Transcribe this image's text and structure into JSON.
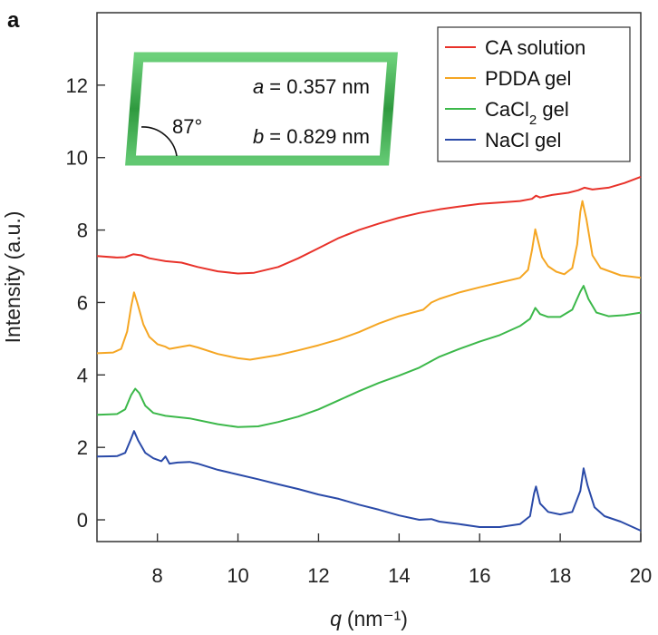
{
  "panel_label": "a",
  "chart_data": {
    "type": "line",
    "title": "",
    "xlabel_var": "q",
    "xlabel_unit": "(nm⁻¹)",
    "ylabel": "Intensity (a.u.)",
    "xlim": [
      6.5,
      20
    ],
    "ylim": [
      -0.6,
      14
    ],
    "x_ticks": [
      8,
      10,
      12,
      14,
      16,
      18,
      20
    ],
    "y_ticks": [
      0,
      2,
      4,
      6,
      8,
      10,
      12
    ],
    "grid": false,
    "legend_position": "top-right",
    "series": [
      {
        "name": "CA solution",
        "name_main": "CA solution",
        "color": "#e8322a",
        "points": [
          [
            6.5,
            7.28
          ],
          [
            7.0,
            7.24
          ],
          [
            7.2,
            7.25
          ],
          [
            7.4,
            7.33
          ],
          [
            7.6,
            7.3
          ],
          [
            7.8,
            7.22
          ],
          [
            8.0,
            7.18
          ],
          [
            8.2,
            7.14
          ],
          [
            8.6,
            7.1
          ],
          [
            9.0,
            6.98
          ],
          [
            9.5,
            6.86
          ],
          [
            10.0,
            6.8
          ],
          [
            10.4,
            6.82
          ],
          [
            11.0,
            6.98
          ],
          [
            11.5,
            7.22
          ],
          [
            12.0,
            7.5
          ],
          [
            12.5,
            7.78
          ],
          [
            13.0,
            8.0
          ],
          [
            13.5,
            8.18
          ],
          [
            14.0,
            8.34
          ],
          [
            14.5,
            8.47
          ],
          [
            15.0,
            8.57
          ],
          [
            15.5,
            8.65
          ],
          [
            16.0,
            8.72
          ],
          [
            16.5,
            8.76
          ],
          [
            17.0,
            8.8
          ],
          [
            17.3,
            8.86
          ],
          [
            17.4,
            8.95
          ],
          [
            17.5,
            8.9
          ],
          [
            17.8,
            8.97
          ],
          [
            18.2,
            9.03
          ],
          [
            18.45,
            9.1
          ],
          [
            18.6,
            9.17
          ],
          [
            18.8,
            9.12
          ],
          [
            19.2,
            9.17
          ],
          [
            19.6,
            9.3
          ],
          [
            20.0,
            9.47
          ]
        ]
      },
      {
        "name": "PDDA gel",
        "name_main": "PDDA gel",
        "color": "#f5a623",
        "points": [
          [
            6.5,
            4.6
          ],
          [
            6.9,
            4.62
          ],
          [
            7.1,
            4.72
          ],
          [
            7.25,
            5.2
          ],
          [
            7.35,
            5.9
          ],
          [
            7.42,
            6.28
          ],
          [
            7.5,
            6.0
          ],
          [
            7.65,
            5.4
          ],
          [
            7.8,
            5.05
          ],
          [
            8.0,
            4.85
          ],
          [
            8.2,
            4.78
          ],
          [
            8.3,
            4.72
          ],
          [
            8.5,
            4.76
          ],
          [
            8.8,
            4.82
          ],
          [
            9.0,
            4.76
          ],
          [
            9.5,
            4.58
          ],
          [
            10.0,
            4.46
          ],
          [
            10.3,
            4.42
          ],
          [
            11.0,
            4.55
          ],
          [
            11.5,
            4.68
          ],
          [
            12.0,
            4.82
          ],
          [
            12.5,
            4.98
          ],
          [
            13.0,
            5.18
          ],
          [
            13.5,
            5.42
          ],
          [
            14.0,
            5.62
          ],
          [
            14.6,
            5.8
          ],
          [
            14.8,
            6.0
          ],
          [
            15.0,
            6.1
          ],
          [
            15.5,
            6.28
          ],
          [
            16.0,
            6.42
          ],
          [
            16.5,
            6.55
          ],
          [
            17.0,
            6.68
          ],
          [
            17.2,
            6.9
          ],
          [
            17.3,
            7.45
          ],
          [
            17.38,
            8.02
          ],
          [
            17.45,
            7.7
          ],
          [
            17.55,
            7.25
          ],
          [
            17.7,
            7.0
          ],
          [
            17.9,
            6.85
          ],
          [
            18.1,
            6.78
          ],
          [
            18.3,
            6.95
          ],
          [
            18.42,
            7.6
          ],
          [
            18.5,
            8.5
          ],
          [
            18.55,
            8.8
          ],
          [
            18.65,
            8.3
          ],
          [
            18.8,
            7.3
          ],
          [
            19.0,
            6.95
          ],
          [
            19.5,
            6.75
          ],
          [
            20.0,
            6.68
          ]
        ]
      },
      {
        "name": "CaCl2 gel",
        "name_main": "CaCl",
        "name_sub": "2",
        "name_tail": " gel",
        "color": "#3cb84a",
        "points": [
          [
            6.5,
            2.9
          ],
          [
            7.0,
            2.92
          ],
          [
            7.2,
            3.05
          ],
          [
            7.35,
            3.45
          ],
          [
            7.45,
            3.62
          ],
          [
            7.55,
            3.5
          ],
          [
            7.7,
            3.15
          ],
          [
            7.9,
            2.95
          ],
          [
            8.2,
            2.87
          ],
          [
            8.8,
            2.8
          ],
          [
            9.5,
            2.64
          ],
          [
            10.0,
            2.56
          ],
          [
            10.5,
            2.58
          ],
          [
            11.0,
            2.7
          ],
          [
            11.5,
            2.85
          ],
          [
            12.0,
            3.05
          ],
          [
            12.5,
            3.3
          ],
          [
            13.0,
            3.55
          ],
          [
            13.5,
            3.78
          ],
          [
            14.0,
            3.98
          ],
          [
            14.5,
            4.2
          ],
          [
            15.0,
            4.5
          ],
          [
            15.5,
            4.72
          ],
          [
            16.0,
            4.92
          ],
          [
            16.5,
            5.1
          ],
          [
            17.0,
            5.35
          ],
          [
            17.25,
            5.55
          ],
          [
            17.38,
            5.85
          ],
          [
            17.5,
            5.68
          ],
          [
            17.7,
            5.6
          ],
          [
            18.0,
            5.6
          ],
          [
            18.3,
            5.8
          ],
          [
            18.5,
            6.3
          ],
          [
            18.58,
            6.46
          ],
          [
            18.7,
            6.1
          ],
          [
            18.9,
            5.72
          ],
          [
            19.2,
            5.62
          ],
          [
            19.6,
            5.65
          ],
          [
            20.0,
            5.72
          ]
        ]
      },
      {
        "name": "NaCl gel",
        "name_main": "NaCl gel",
        "color": "#2a4aa8",
        "points": [
          [
            6.5,
            1.75
          ],
          [
            7.0,
            1.76
          ],
          [
            7.2,
            1.85
          ],
          [
            7.35,
            2.25
          ],
          [
            7.42,
            2.45
          ],
          [
            7.52,
            2.2
          ],
          [
            7.7,
            1.85
          ],
          [
            7.9,
            1.7
          ],
          [
            8.1,
            1.62
          ],
          [
            8.2,
            1.75
          ],
          [
            8.3,
            1.55
          ],
          [
            8.5,
            1.58
          ],
          [
            8.8,
            1.6
          ],
          [
            9.0,
            1.55
          ],
          [
            9.5,
            1.38
          ],
          [
            10.0,
            1.25
          ],
          [
            10.5,
            1.12
          ],
          [
            11.0,
            0.98
          ],
          [
            11.5,
            0.85
          ],
          [
            12.0,
            0.7
          ],
          [
            12.5,
            0.58
          ],
          [
            13.0,
            0.42
          ],
          [
            13.5,
            0.28
          ],
          [
            14.0,
            0.12
          ],
          [
            14.5,
            0.0
          ],
          [
            14.8,
            0.02
          ],
          [
            15.0,
            -0.05
          ],
          [
            15.5,
            -0.12
          ],
          [
            16.0,
            -0.2
          ],
          [
            16.5,
            -0.2
          ],
          [
            17.0,
            -0.12
          ],
          [
            17.25,
            0.1
          ],
          [
            17.35,
            0.72
          ],
          [
            17.4,
            0.92
          ],
          [
            17.5,
            0.45
          ],
          [
            17.7,
            0.22
          ],
          [
            18.0,
            0.15
          ],
          [
            18.3,
            0.22
          ],
          [
            18.5,
            0.8
          ],
          [
            18.58,
            1.42
          ],
          [
            18.68,
            0.95
          ],
          [
            18.85,
            0.35
          ],
          [
            19.1,
            0.1
          ],
          [
            19.5,
            -0.05
          ],
          [
            20.0,
            -0.3
          ]
        ]
      }
    ]
  },
  "inset": {
    "angle_label": "87°",
    "a_var": "a",
    "a_value": " = 0.357 nm",
    "b_var": "b",
    "b_value": " = 0.829 nm"
  }
}
